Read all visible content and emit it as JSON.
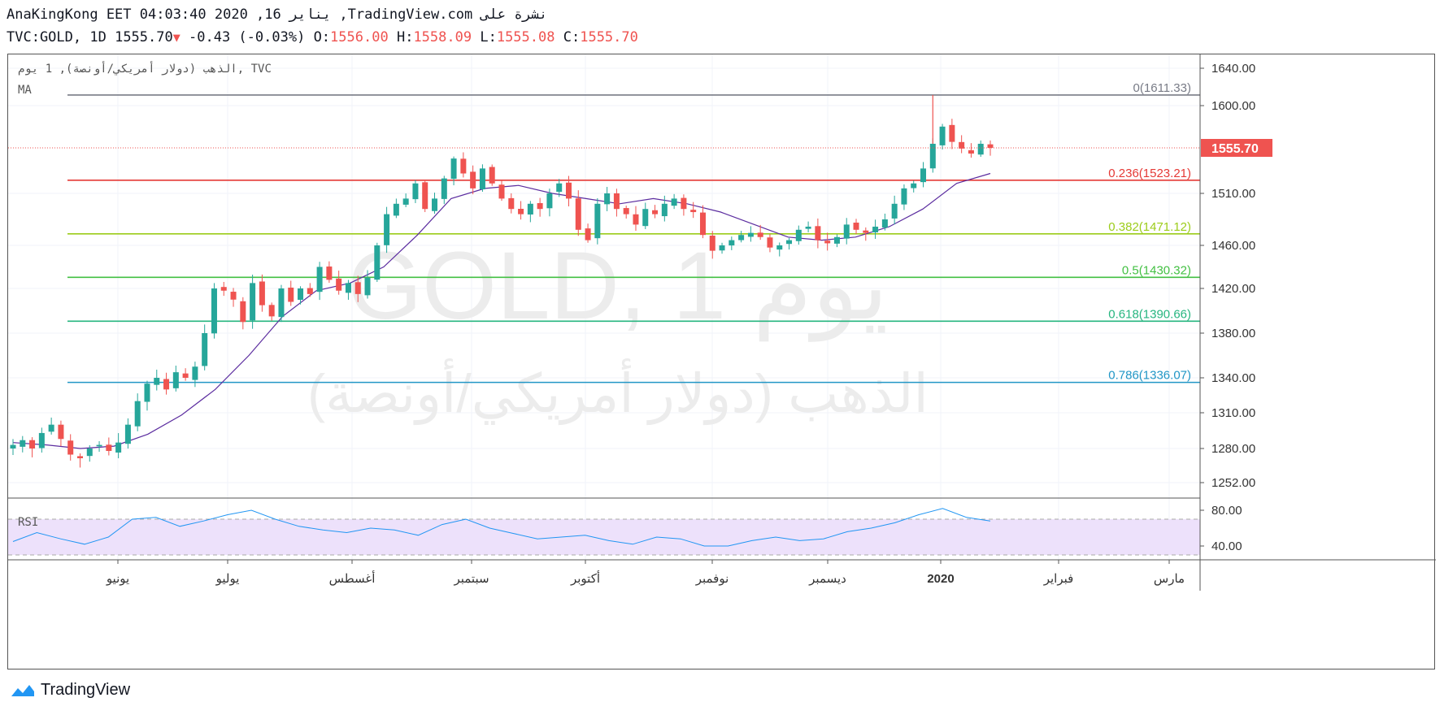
{
  "header": {
    "line1": "AnaKingKong EET 04:03:40 2020 ,16 يناير ,TradingView.com نشرة على",
    "symbol": "TVC:GOLD, 1D",
    "last": "1555.70",
    "change": "-0.43 (-0.03%)",
    "o_label": "O:",
    "o": "1556.00",
    "h_label": "H:",
    "h": "1558.09",
    "l_label": "L:",
    "l": "1555.08",
    "c_label": "C:",
    "c": "1555.70"
  },
  "legend": {
    "title": "الذهب (دولار أمريكي/أونصة), 1 يوم, TVC",
    "ma": "MA",
    "rsi": "RSI"
  },
  "watermark": {
    "line1": "GOLD, 1 يوم",
    "line2": "الذهب (دولار أمريكي/أونصة)"
  },
  "brand": "TradingView",
  "colors": {
    "up": "#26a69a",
    "down": "#ef5350",
    "ma": "#5b2c9f",
    "rsi_line": "#2196f3",
    "rsi_band": "#ede1fb",
    "fib_0": "#787b86",
    "fib_236": "#e53935",
    "fib_382": "#9ccc1a",
    "fib_5": "#43c043",
    "fib_618": "#26b57f",
    "fib_786": "#2196c6"
  },
  "chart_data": {
    "type": "candlestick",
    "price_axis_ticks": [
      "1640.00",
      "1600.00",
      "1555.70",
      "1510.00",
      "1460.00",
      "1420.00",
      "1380.00",
      "1340.00",
      "1310.00",
      "1280.00",
      "1252.00"
    ],
    "price_ticks_values": [
      1640,
      1600,
      1510,
      1460,
      1420,
      1380,
      1340,
      1310,
      1280,
      1252
    ],
    "rsi_ticks": [
      "80.00",
      "40.00"
    ],
    "time_labels": [
      "يونيو",
      "يوليو",
      "أغسطس",
      "سبتمبر",
      "أكتوبر",
      "نوفمبر",
      "ديسمبر",
      "2020",
      "فبراير",
      "مارس"
    ],
    "last_price": 1555.7,
    "fib_levels": [
      {
        "level": "0",
        "price": 1611.33,
        "text": "0(1611.33)"
      },
      {
        "level": "0.236",
        "price": 1523.21,
        "text": "0.236(1523.21)"
      },
      {
        "level": "0.382",
        "price": 1471.12,
        "text": "0.382(1471.12)"
      },
      {
        "level": "0.5",
        "price": 1430.32,
        "text": "0.5(1430.32)"
      },
      {
        "level": "0.618",
        "price": 1390.66,
        "text": "0.618(1390.66)"
      },
      {
        "level": "0.786",
        "price": 1336.07,
        "text": "0.786(1336.07)"
      }
    ],
    "close_path": [
      1283,
      1287,
      1280,
      1293,
      1300,
      1288,
      1275,
      1272,
      1280,
      1283,
      1278,
      1285,
      1300,
      1320,
      1335,
      1340,
      1330,
      1345,
      1340,
      1350,
      1380,
      1420,
      1418,
      1410,
      1390,
      1425,
      1405,
      1395,
      1420,
      1408,
      1420,
      1415,
      1440,
      1428,
      1418,
      1425,
      1415,
      1430,
      1460,
      1490,
      1500,
      1505,
      1520,
      1495,
      1505,
      1525,
      1545,
      1530,
      1515,
      1535,
      1520,
      1505,
      1495,
      1490,
      1500,
      1495,
      1510,
      1520,
      1505,
      1475,
      1465,
      1500,
      1510,
      1495,
      1490,
      1480,
      1495,
      1490,
      1500,
      1505,
      1495,
      1492,
      1470,
      1455,
      1460,
      1465,
      1470,
      1472,
      1468,
      1458,
      1460,
      1465,
      1475,
      1478,
      1465,
      1462,
      1468,
      1480,
      1475,
      1472,
      1478,
      1485,
      1500,
      1515,
      1520,
      1535,
      1560,
      1578,
      1562,
      1555,
      1550,
      1560,
      1555.7
    ],
    "ma_path": [
      1285,
      1283,
      1280,
      1282,
      1292,
      1308,
      1330,
      1360,
      1395,
      1418,
      1425,
      1440,
      1470,
      1505,
      1515,
      1518,
      1510,
      1505,
      1500,
      1505,
      1500,
      1492,
      1480,
      1468,
      1465,
      1468,
      1478,
      1495,
      1520,
      1530
    ],
    "rsi_path": [
      45,
      55,
      48,
      42,
      50,
      70,
      72,
      62,
      68,
      75,
      80,
      70,
      62,
      58,
      55,
      60,
      58,
      52,
      64,
      70,
      60,
      54,
      48,
      50,
      52,
      46,
      42,
      50,
      48,
      40,
      40,
      46,
      50,
      46,
      48,
      56,
      60,
      66,
      75,
      82,
      72,
      68
    ]
  }
}
